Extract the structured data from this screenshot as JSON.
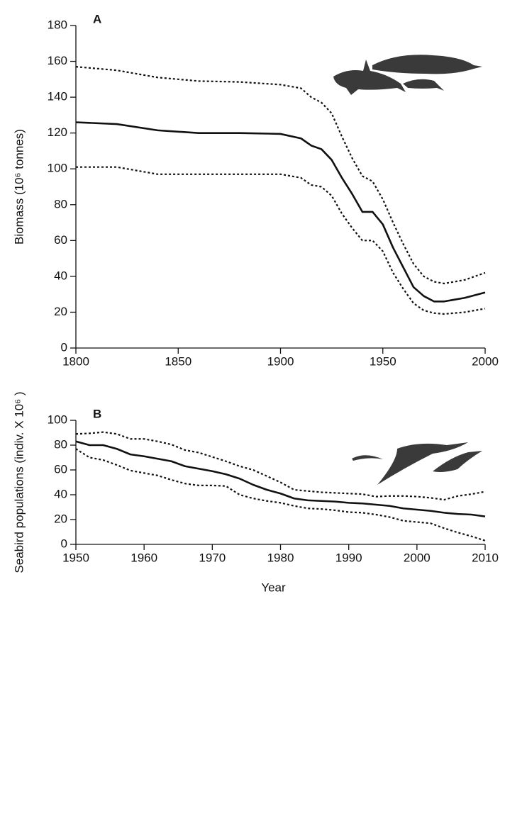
{
  "chart_data": [
    {
      "type": "line",
      "title": "A",
      "ylabel": "Biomass (10⁶ tonnes)",
      "x": [
        1800,
        1820,
        1840,
        1860,
        1880,
        1900,
        1910,
        1915,
        1920,
        1925,
        1930,
        1935,
        1940,
        1945,
        1950,
        1955,
        1960,
        1965,
        1970,
        1975,
        1980,
        1990,
        2000
      ],
      "series": [
        {
          "color": "#111111",
          "style": "solid",
          "values": [
            126,
            125,
            121.5,
            120,
            120,
            119.5,
            117,
            113,
            111,
            105,
            95,
            86,
            76,
            76,
            69,
            56,
            45,
            34,
            29,
            26,
            26,
            28,
            31
          ]
        },
        {
          "color": "#111111",
          "style": "dotted",
          "values": [
            157,
            155,
            151,
            149,
            148.5,
            147,
            145,
            140,
            137,
            131,
            118,
            106,
            96,
            93,
            83,
            70,
            58,
            47,
            40,
            37,
            36,
            38,
            42
          ]
        },
        {
          "color": "#111111",
          "style": "dotted",
          "values": [
            101,
            101,
            97,
            97,
            97,
            97,
            95,
            91,
            90,
            85,
            75,
            67,
            60,
            60,
            54,
            42,
            33,
            25,
            21,
            19.5,
            19,
            20,
            22
          ]
        }
      ],
      "xlim": [
        1800,
        2000
      ],
      "xticks": [
        1800,
        1850,
        1900,
        1950,
        2000
      ],
      "ylim": [
        0,
        180
      ],
      "yticks": [
        0,
        20,
        40,
        60,
        80,
        100,
        120,
        140,
        160,
        180
      ]
    },
    {
      "type": "line",
      "title": "B",
      "ylabel": "Seabird populations (indiv. X 10⁶ )",
      "xlabel": "Year",
      "x": [
        1950,
        1952,
        1954,
        1956,
        1958,
        1960,
        1962,
        1964,
        1966,
        1968,
        1970,
        1972,
        1974,
        1976,
        1978,
        1980,
        1982,
        1984,
        1986,
        1988,
        1990,
        1992,
        1994,
        1996,
        1998,
        2000,
        2002,
        2004,
        2006,
        2008,
        2010
      ],
      "series": [
        {
          "color": "#111111",
          "style": "solid",
          "values": [
            83,
            80,
            80,
            77,
            72.5,
            71,
            69,
            67,
            63,
            61,
            59,
            56.5,
            53,
            48,
            44,
            41,
            37,
            35.5,
            35,
            34.5,
            33.5,
            33,
            32,
            31,
            29,
            28,
            27,
            25.5,
            24.5,
            24,
            22.5
          ]
        },
        {
          "color": "#111111",
          "style": "dotted",
          "values": [
            89,
            89.5,
            90.5,
            89,
            85,
            85,
            83,
            80.5,
            76,
            74,
            70.5,
            67,
            63,
            60,
            55,
            50,
            44,
            43,
            42,
            41.5,
            41,
            40.5,
            38.5,
            39,
            39,
            38.5,
            37.5,
            36,
            39,
            40.5,
            42.5
          ]
        },
        {
          "color": "#111111",
          "style": "dotted",
          "values": [
            77,
            70,
            68,
            64,
            59.5,
            57.5,
            55.5,
            52,
            49,
            47.5,
            47.5,
            47,
            40,
            37,
            35,
            33.5,
            31,
            29,
            28.5,
            27.5,
            26,
            25.5,
            24,
            22,
            19,
            18,
            17,
            13,
            9.5,
            6.5,
            3
          ]
        }
      ],
      "xlim": [
        1950,
        2010
      ],
      "xticks": [
        1950,
        1960,
        1970,
        1980,
        1990,
        2000,
        2010
      ],
      "ylim": [
        0,
        100
      ],
      "yticks": [
        0,
        20,
        40,
        60,
        80,
        100
      ]
    }
  ]
}
